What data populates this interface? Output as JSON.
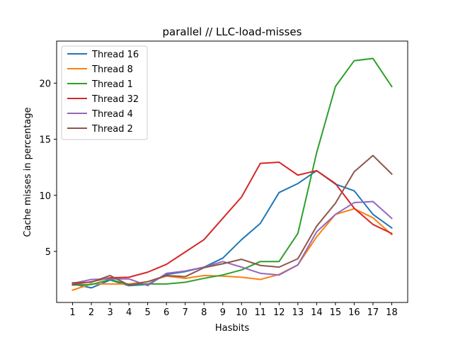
{
  "chart_data": {
    "type": "line",
    "title": "parallel // LLC-load-misses",
    "xlabel": "Hasbits",
    "ylabel": "Cache misses in percentage",
    "x": [
      1,
      2,
      3,
      4,
      5,
      6,
      7,
      8,
      9,
      10,
      11,
      12,
      13,
      14,
      15,
      16,
      17,
      18
    ],
    "xlim": [
      0.15,
      18.85
    ],
    "ylim": [
      0.45,
      23.75
    ],
    "yticks": [
      5,
      10,
      15,
      20
    ],
    "grid": false,
    "legend_position": "upper-left",
    "series": [
      {
        "name": "Thread 16",
        "color": "#1f77b4",
        "values": [
          2.1,
          1.75,
          2.45,
          1.95,
          2.05,
          2.95,
          3.2,
          3.6,
          4.4,
          6.05,
          7.5,
          10.25,
          11.05,
          12.2,
          11.0,
          10.4,
          8.3,
          7.1
        ]
      },
      {
        "name": "Thread 8",
        "color": "#ff7f0e",
        "values": [
          1.55,
          2.1,
          2.1,
          2.1,
          2.3,
          2.8,
          2.6,
          2.85,
          2.8,
          2.7,
          2.5,
          2.95,
          3.8,
          6.3,
          8.3,
          8.8,
          8.0,
          6.5
        ]
      },
      {
        "name": "Thread 1",
        "color": "#2ca02c",
        "values": [
          2.0,
          2.05,
          2.5,
          2.05,
          2.1,
          2.1,
          2.25,
          2.6,
          2.9,
          3.35,
          4.1,
          4.1,
          6.6,
          13.8,
          19.7,
          22.0,
          22.2,
          19.7
        ]
      },
      {
        "name": "Thread 32",
        "color": "#d62728",
        "values": [
          2.05,
          2.3,
          2.65,
          2.7,
          3.15,
          3.85,
          4.95,
          6.05,
          7.95,
          9.85,
          12.85,
          12.95,
          11.8,
          12.2,
          11.05,
          8.85,
          7.4,
          6.6
        ]
      },
      {
        "name": "Thread 4",
        "color": "#9467bd",
        "values": [
          2.15,
          2.5,
          2.55,
          2.55,
          1.95,
          3.05,
          3.25,
          3.6,
          4.1,
          3.6,
          3.05,
          2.9,
          3.8,
          6.75,
          8.3,
          9.35,
          9.45,
          7.95
        ]
      },
      {
        "name": "Thread 2",
        "color": "#8c564b",
        "values": [
          2.2,
          2.25,
          2.85,
          2.0,
          2.3,
          2.85,
          2.75,
          3.55,
          3.9,
          4.3,
          3.75,
          3.6,
          4.35,
          7.25,
          9.3,
          12.1,
          13.55,
          11.9
        ]
      }
    ]
  }
}
